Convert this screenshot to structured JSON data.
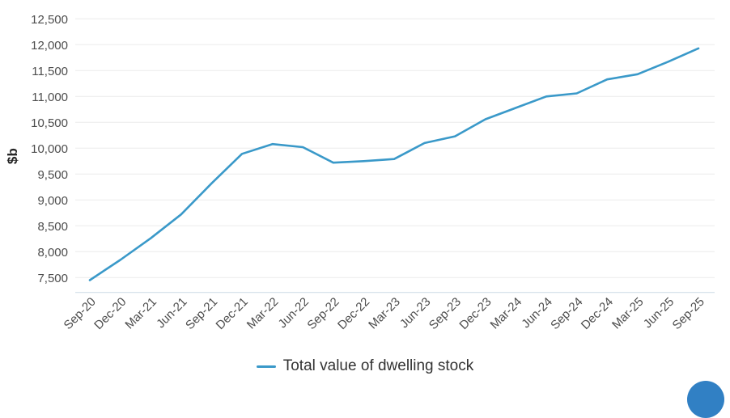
{
  "chart_data": {
    "type": "line",
    "title": "",
    "xlabel": "",
    "ylabel": "$b",
    "categories": [
      "Sep-20",
      "Dec-20",
      "Mar-21",
      "Jun-21",
      "Sep-21",
      "Dec-21",
      "Mar-22",
      "Jun-22",
      "Sep-22",
      "Dec-22",
      "Mar-23",
      "Jun-23",
      "Sep-23",
      "Dec-23",
      "Mar-24",
      "Jun-24",
      "Sep-24",
      "Dec-24",
      "Mar-25",
      "Jun-25",
      "Sep-25"
    ],
    "series": [
      {
        "name": "Total value of dwelling stock",
        "color": "#3a99c9",
        "values": [
          7450,
          7840,
          8260,
          8720,
          9320,
          9890,
          10080,
          10020,
          9720,
          9750,
          9790,
          10100,
          10230,
          10560,
          10780,
          11000,
          11060,
          11330,
          11430,
          11670,
          11930
        ]
      }
    ],
    "yticks": [
      7500,
      8000,
      8500,
      9000,
      9500,
      10000,
      10500,
      11000,
      11500,
      12000,
      12500
    ],
    "ylim": [
      7200,
      12500
    ],
    "grid": "horizontal",
    "legend_position": "bottom"
  },
  "colors": {
    "line": "#3a99c9",
    "grid": "#ececec",
    "axis_line": "#ccd9e6",
    "tick_text": "#4d4d4d",
    "axis_title_text": "#262626",
    "legend_text": "#333333",
    "fab": "#3180c4"
  }
}
